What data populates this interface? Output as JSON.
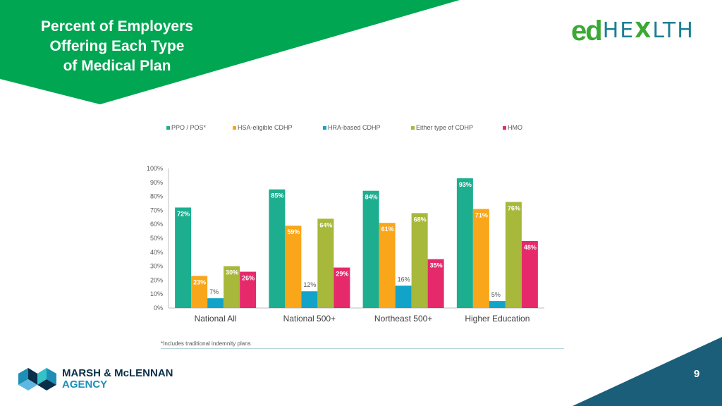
{
  "slide": {
    "title_lines": [
      "Percent of Employers",
      "Offering Each Type",
      "of Medical Plan"
    ],
    "logo": {
      "ed": "ed",
      "health_pre": "HE",
      "health_x": "X",
      "health_post": "LTH"
    },
    "footnote": "*Includes traditional indemnity plans",
    "page_number": "9",
    "company": {
      "line1": "MARSH & McLENNAN",
      "line2": "AGENCY"
    },
    "colors": {
      "green_band": "#00a651",
      "teal_corner": "#1b5e7a",
      "mma_dark": "#0a2f4a",
      "mma_blue": "#1d8fb7"
    }
  },
  "chart_data": {
    "type": "bar",
    "categories": [
      "National All",
      "National 500+",
      "Northeast 500+",
      "Higher Education"
    ],
    "series": [
      {
        "name": "PPO / POS*",
        "color": "#1dae8f",
        "values": [
          72,
          85,
          84,
          93
        ]
      },
      {
        "name": "HSA-eligible CDHP",
        "color": "#f9a61a",
        "values": [
          23,
          59,
          61,
          71
        ]
      },
      {
        "name": "HRA-based CDHP",
        "color": "#12a3c9",
        "values": [
          7,
          12,
          16,
          5
        ]
      },
      {
        "name": "Either type of CDHP",
        "color": "#a7b83a",
        "values": [
          30,
          64,
          68,
          76
        ]
      },
      {
        "name": "HMO",
        "color": "#e5296b",
        "values": [
          26,
          29,
          35,
          48
        ]
      }
    ],
    "value_labels": [
      [
        "72%",
        "85%",
        "84%",
        "93%"
      ],
      [
        "23%",
        "59%",
        "61%",
        "71%"
      ],
      [
        "7%",
        "12%",
        "16%",
        "5%"
      ],
      [
        "30%",
        "64%",
        "68%",
        "76%"
      ],
      [
        "26%",
        "29%",
        "35%",
        "48%"
      ]
    ],
    "y_ticks": [
      "0%",
      "10%",
      "20%",
      "30%",
      "40%",
      "50%",
      "60%",
      "70%",
      "80%",
      "90%",
      "100%"
    ],
    "ylim": [
      0,
      100
    ],
    "legend_position": "top",
    "grid": false
  }
}
